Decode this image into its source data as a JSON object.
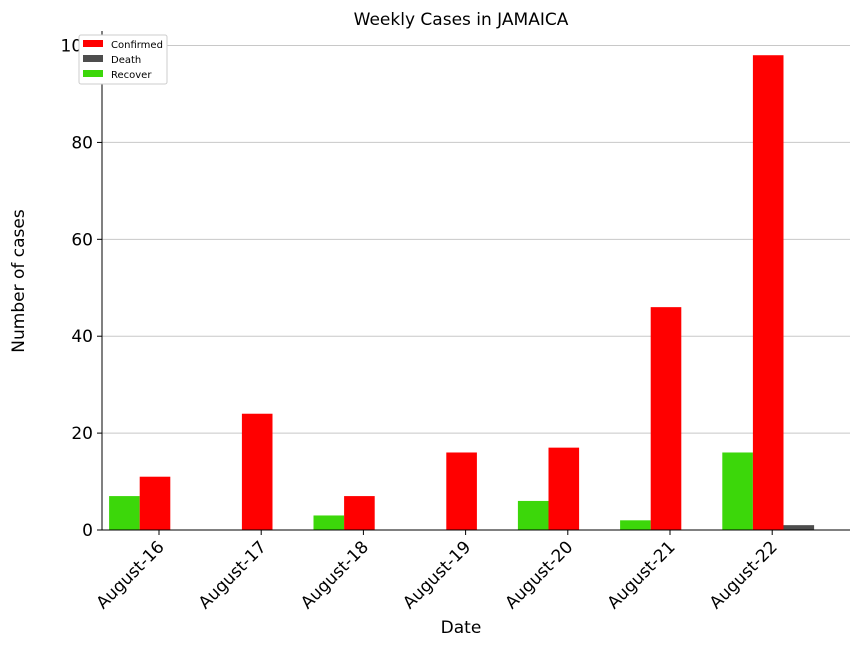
{
  "chart_data": {
    "type": "bar",
    "title": "Weekly Cases in JAMAICA",
    "xlabel": "Date",
    "ylabel": "Number of cases",
    "categories": [
      "August-16",
      "August-17",
      "August-18",
      "August-19",
      "August-20",
      "August-21",
      "August-22"
    ],
    "series": [
      {
        "name": "Recover",
        "color": "#3cd70a",
        "values": [
          7,
          0,
          3,
          0,
          6,
          2,
          16
        ]
      },
      {
        "name": "Confirmed",
        "color": "#ff0000",
        "values": [
          11,
          24,
          7,
          16,
          17,
          46,
          98
        ]
      },
      {
        "name": "Death",
        "color": "#4d4d4d",
        "values": [
          0,
          0,
          0,
          0,
          0,
          0,
          1
        ]
      }
    ],
    "legend_order": [
      "Confirmed",
      "Death",
      "Recover"
    ],
    "ylim": [
      0,
      103
    ],
    "yticks": [
      0,
      20,
      40,
      60,
      80,
      100
    ],
    "grid": "horizontal",
    "legend_position": "top-left"
  }
}
